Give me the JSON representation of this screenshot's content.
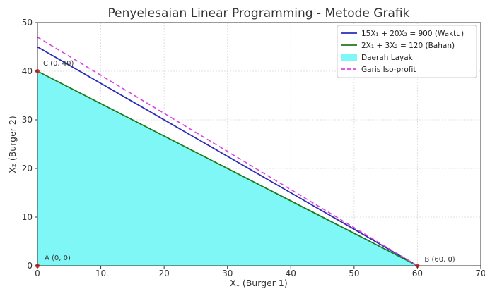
{
  "chart_data": {
    "type": "line",
    "title": "Penyelesaian Linear Programming - Metode Grafik",
    "xlabel": "X₁ (Burger 1)",
    "ylabel": "X₂ (Burger 2)",
    "xlim": [
      0,
      70
    ],
    "ylim": [
      0,
      50
    ],
    "xticks": [
      0,
      10,
      20,
      30,
      40,
      50,
      60,
      70
    ],
    "yticks": [
      0,
      10,
      20,
      30,
      40,
      50
    ],
    "grid": true,
    "legend_position": "top-right",
    "series": [
      {
        "name": "15X₁ + 20X₂ = 900 (Waktu)",
        "kind": "line",
        "color": "#2b2bb8",
        "x": [
          0,
          60
        ],
        "y": [
          45,
          0
        ]
      },
      {
        "name": "2X₁ + 3X₂ = 120 (Bahan)",
        "kind": "line",
        "color": "#1e7a1e",
        "x": [
          0,
          60
        ],
        "y": [
          40,
          0
        ]
      },
      {
        "name": "Daerah Layak",
        "kind": "area",
        "color": "#7ff7f7",
        "x": [
          0,
          0,
          60
        ],
        "y": [
          0,
          40,
          0
        ]
      },
      {
        "name": "Garis Iso-profit",
        "kind": "dashed",
        "color": "#e040e0",
        "x": [
          0,
          60
        ],
        "y": [
          47,
          0
        ]
      }
    ],
    "points": [
      {
        "label": "A (0, 0)",
        "x": 0,
        "y": 0
      },
      {
        "label": "B (60, 0)",
        "x": 60,
        "y": 0
      },
      {
        "label": "C (0, 40)",
        "x": 0,
        "y": 40
      }
    ],
    "point_color": "#e03030"
  }
}
